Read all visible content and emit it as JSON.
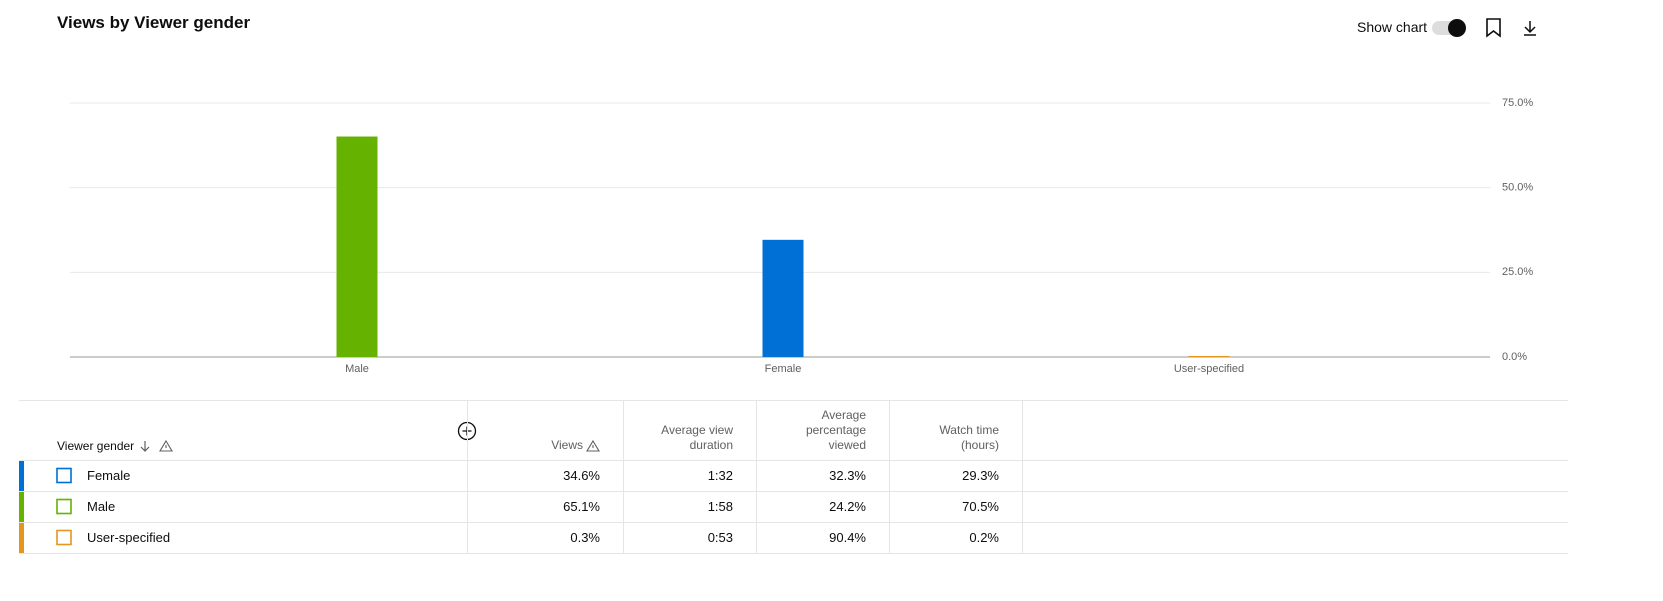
{
  "header": {
    "title": "Views by Viewer gender",
    "toggle_label": "Show chart"
  },
  "chart_data": {
    "type": "bar",
    "categories": [
      "Male",
      "Female",
      "User-specified"
    ],
    "values": [
      65.1,
      34.6,
      0.3
    ],
    "colors": [
      "#65b200",
      "#0070d6",
      "#e5961f"
    ],
    "ylim": [
      0,
      75
    ],
    "yticks": [
      {
        "value": 0,
        "label": "0.0%"
      },
      {
        "value": 25,
        "label": "25.0%"
      },
      {
        "value": 50,
        "label": "50.0%"
      },
      {
        "value": 75,
        "label": "75.0%"
      }
    ],
    "grid": true
  },
  "table": {
    "columns": [
      "Viewer gender",
      "Views",
      "Average view duration",
      "Average percentage viewed",
      "Watch time (hours)"
    ],
    "row_colors": [
      "#0070d6",
      "#65b200",
      "#e5961f"
    ],
    "rows": [
      [
        "Female",
        "34.6%",
        "1:32",
        "32.3%",
        "29.3%"
      ],
      [
        "Male",
        "65.1%",
        "1:58",
        "24.2%",
        "70.5%"
      ],
      [
        "User-specified",
        "0.3%",
        "0:53",
        "90.4%",
        "0.2%"
      ]
    ]
  }
}
